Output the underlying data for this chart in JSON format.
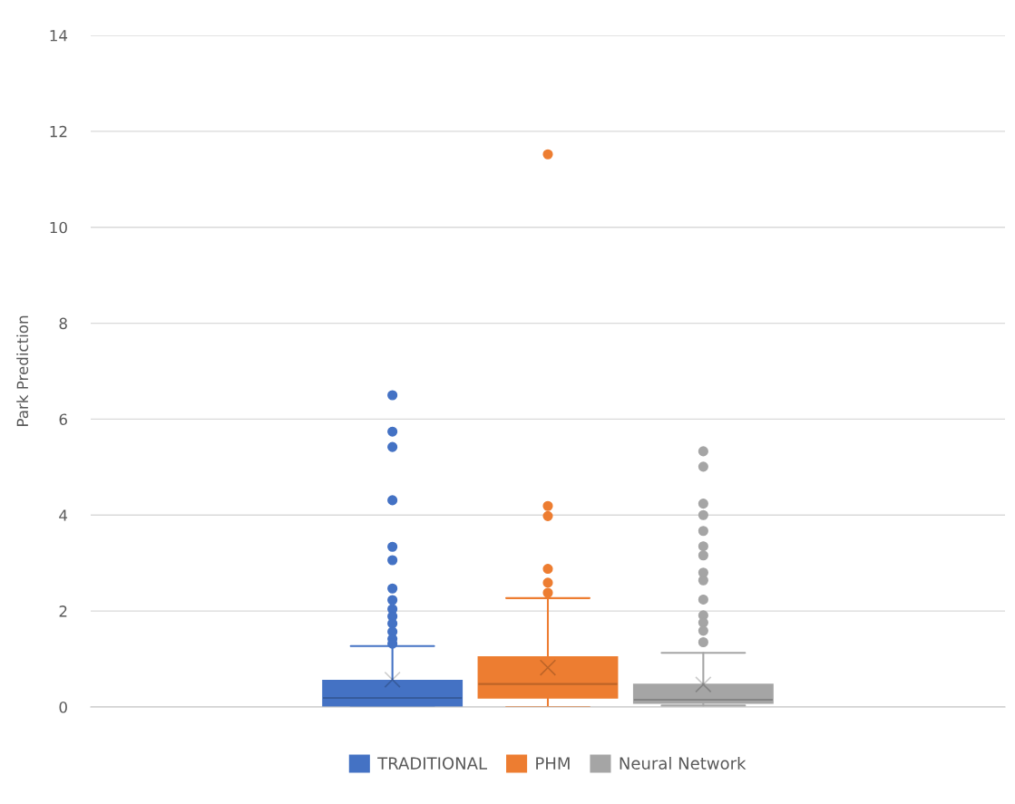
{
  "chart_data": {
    "type": "box",
    "ylabel": "Park Prediction",
    "categories": [
      null
    ],
    "ylim": [
      0,
      14
    ],
    "yticks": [
      0,
      2,
      4,
      6,
      8,
      10,
      12,
      14
    ],
    "grid": "y",
    "legend": "bottom",
    "series": [
      {
        "name": "TRADITIONAL",
        "color": "#4472c4",
        "boxes": [
          {
            "low": 0,
            "q1": 0.02,
            "median": 0.19,
            "q3": 0.55,
            "high": 1.27,
            "mean": 0.57,
            "outliers": [
              6.5,
              5.74,
              5.42,
              4.31,
              3.34,
              3.06,
              2.47,
              2.23,
              2.04,
              1.89,
              1.74,
              1.57,
              1.42,
              1.32
            ]
          }
        ]
      },
      {
        "name": "PHM",
        "color": "#ed7d31",
        "boxes": [
          {
            "low": 0,
            "q1": 0.19,
            "median": 0.48,
            "q3": 1.04,
            "high": 2.27,
            "mean": 0.82,
            "outliers": [
              11.52,
              4.19,
              3.98,
              2.88,
              2.59,
              2.38
            ]
          }
        ]
      },
      {
        "name": "Neural Network",
        "color": "#a5a5a5",
        "boxes": [
          {
            "low": 0.03,
            "q1": 0.08,
            "median": 0.15,
            "q3": 0.47,
            "high": 1.13,
            "mean": 0.47,
            "outliers": [
              5.33,
              5.01,
              4.24,
              4.0,
              3.67,
              3.35,
              3.16,
              2.8,
              2.64,
              2.24,
              1.91,
              1.76,
              1.59,
              1.35
            ]
          }
        ]
      }
    ]
  }
}
